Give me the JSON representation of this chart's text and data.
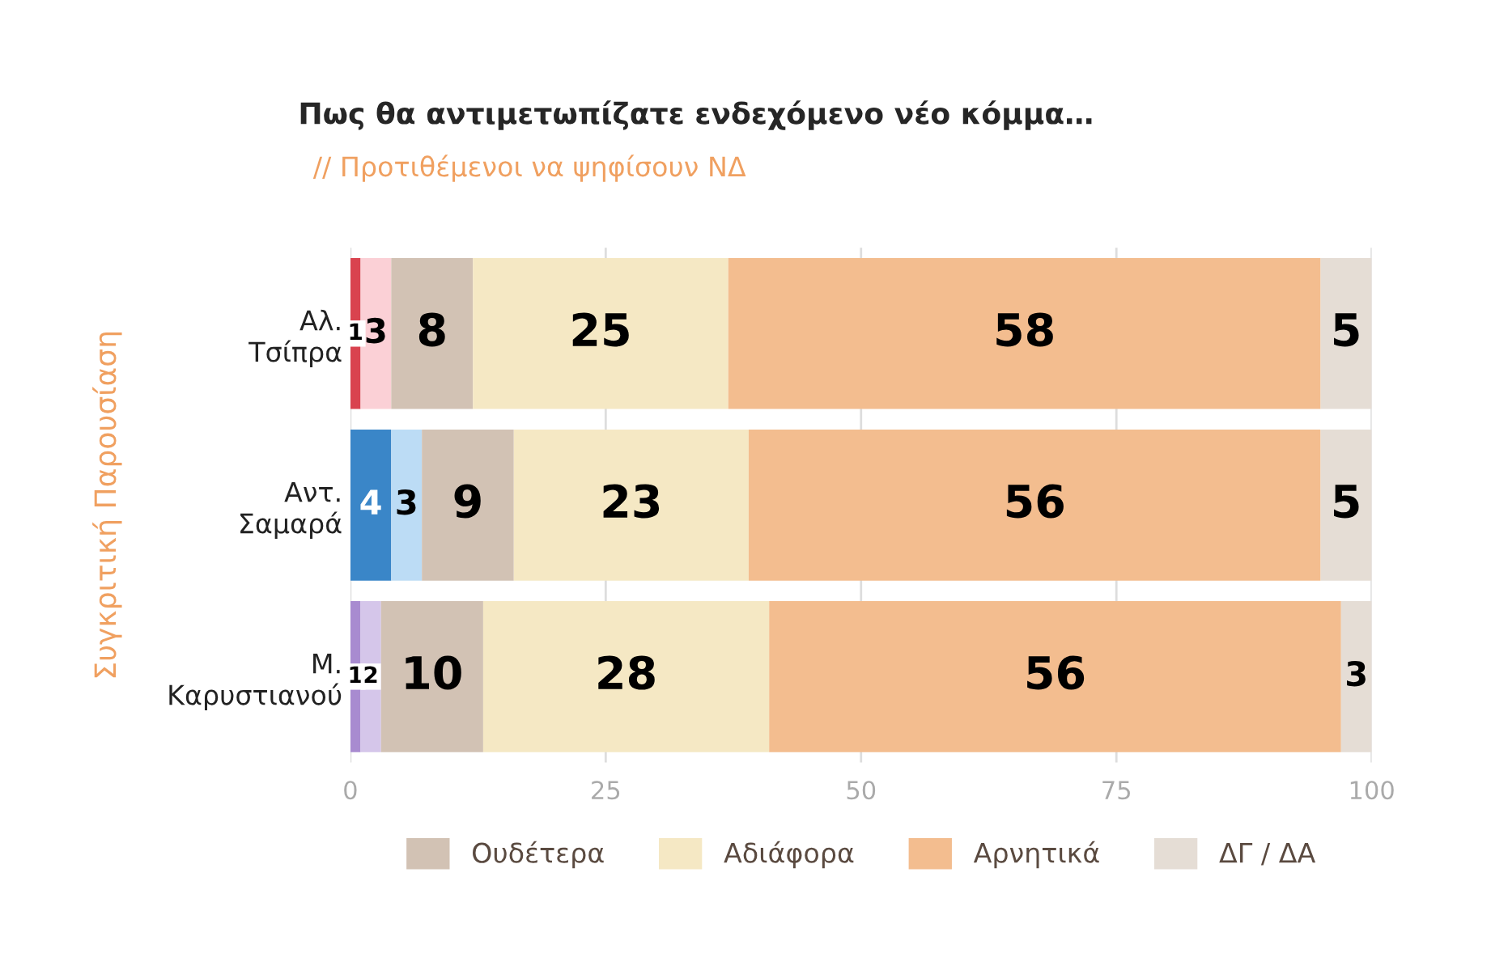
{
  "chart_data": {
    "type": "bar",
    "orientation": "horizontal",
    "stacked": true,
    "title": "Πως θα αντιμετωπίζατε ενδεχόμενο νέο κόμμα…",
    "subtitle": "// Προτιθέμενοι να ψηφίσουν ΝΔ",
    "ylabel": "Συγκριτική Παρουσίαση",
    "categories": [
      "Αλ.\nΤσίπρα",
      "Αντ.\nΣαμαρά",
      "Μ.\nΚαρυστιανού"
    ],
    "series": [
      {
        "colors": [
          "#d9434f",
          "#3a86c8",
          "#a88bd0"
        ],
        "values": [
          1,
          4,
          1
        ]
      },
      {
        "colors": [
          "#fbd0d6",
          "#bcdcf5",
          "#d5c6ea"
        ],
        "values": [
          3,
          3,
          2
        ]
      },
      {
        "name": "Ουδέτερα",
        "color": "#d2c2b4",
        "values": [
          8,
          9,
          10
        ]
      },
      {
        "name": "Αδιάφορα",
        "color": "#f5e8c4",
        "values": [
          25,
          23,
          28
        ]
      },
      {
        "name": "Αρνητικά",
        "color": "#f3bd8f",
        "values": [
          58,
          56,
          56
        ]
      },
      {
        "name": "ΔΓ / ΔΑ",
        "color": "#e5ddd5",
        "values": [
          5,
          5,
          3
        ]
      }
    ],
    "xlim": [
      0,
      100
    ],
    "xticks": [
      0,
      25,
      50,
      75,
      100
    ],
    "grid": "x",
    "legend": "bottom",
    "data_labels": true
  }
}
